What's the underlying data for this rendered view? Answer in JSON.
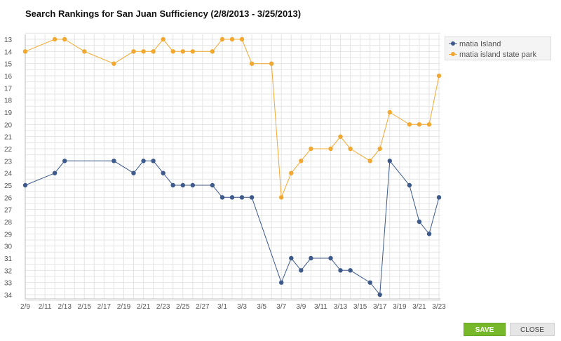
{
  "chart": {
    "title": "Search Rankings for San Juan Sufficiency (2/8/2013 - 3/25/2013)"
  },
  "legend": {
    "items": [
      {
        "label": "matia Island",
        "color": "#3d5a8a"
      },
      {
        "label": "matia island state park",
        "color": "#f0a830"
      }
    ]
  },
  "buttons": {
    "save_label": "SAVE",
    "close_label": "CLOSE"
  },
  "chart_data": {
    "type": "line",
    "title": "Search Rankings for San Juan Sufficiency (2/8/2013 - 3/25/2013)",
    "xlabel": "",
    "ylabel": "",
    "y_inverted": true,
    "ylim": [
      13,
      34
    ],
    "y_ticks": [
      13,
      14,
      15,
      16,
      17,
      18,
      19,
      20,
      21,
      22,
      23,
      24,
      25,
      26,
      27,
      28,
      29,
      30,
      31,
      32,
      33,
      34
    ],
    "xlim": [
      "2013-02-09",
      "2013-03-23"
    ],
    "x_tick_labels": [
      "2/9",
      "2/11",
      "2/13",
      "2/15",
      "2/17",
      "2/19",
      "2/21",
      "2/23",
      "2/25",
      "2/27",
      "3/1",
      "3/3",
      "3/5",
      "3/7",
      "3/9",
      "3/11",
      "3/13",
      "3/15",
      "3/17",
      "3/19",
      "3/21",
      "3/23"
    ],
    "x_tick_dates": [
      "2013-02-09",
      "2013-02-11",
      "2013-02-13",
      "2013-02-15",
      "2013-02-17",
      "2013-02-19",
      "2013-02-21",
      "2013-02-23",
      "2013-02-25",
      "2013-02-27",
      "2013-03-01",
      "2013-03-03",
      "2013-03-05",
      "2013-03-07",
      "2013-03-09",
      "2013-03-11",
      "2013-03-13",
      "2013-03-15",
      "2013-03-17",
      "2013-03-19",
      "2013-03-21",
      "2013-03-23"
    ],
    "grid": true,
    "legend_position": "top-right",
    "series": [
      {
        "name": "matia Island",
        "color": "#3d5a8a",
        "points": [
          {
            "x": "2013-02-09",
            "y": 25
          },
          {
            "x": "2013-02-12",
            "y": 24
          },
          {
            "x": "2013-02-13",
            "y": 23
          },
          {
            "x": "2013-02-18",
            "y": 23
          },
          {
            "x": "2013-02-20",
            "y": 24
          },
          {
            "x": "2013-02-21",
            "y": 23
          },
          {
            "x": "2013-02-22",
            "y": 23
          },
          {
            "x": "2013-02-23",
            "y": 24
          },
          {
            "x": "2013-02-24",
            "y": 25
          },
          {
            "x": "2013-02-25",
            "y": 25
          },
          {
            "x": "2013-02-26",
            "y": 25
          },
          {
            "x": "2013-02-28",
            "y": 25
          },
          {
            "x": "2013-03-01",
            "y": 26
          },
          {
            "x": "2013-03-02",
            "y": 26
          },
          {
            "x": "2013-03-03",
            "y": 26
          },
          {
            "x": "2013-03-04",
            "y": 26
          },
          {
            "x": "2013-03-07",
            "y": 33
          },
          {
            "x": "2013-03-08",
            "y": 31
          },
          {
            "x": "2013-03-09",
            "y": 32
          },
          {
            "x": "2013-03-10",
            "y": 31
          },
          {
            "x": "2013-03-12",
            "y": 31
          },
          {
            "x": "2013-03-13",
            "y": 32
          },
          {
            "x": "2013-03-14",
            "y": 32
          },
          {
            "x": "2013-03-16",
            "y": 33
          },
          {
            "x": "2013-03-17",
            "y": 34
          },
          {
            "x": "2013-03-18",
            "y": 23
          },
          {
            "x": "2013-03-20",
            "y": 25
          },
          {
            "x": "2013-03-21",
            "y": 28
          },
          {
            "x": "2013-03-22",
            "y": 29
          },
          {
            "x": "2013-03-23",
            "y": 26
          }
        ]
      },
      {
        "name": "matia island state park",
        "color": "#f0a830",
        "points": [
          {
            "x": "2013-02-09",
            "y": 14
          },
          {
            "x": "2013-02-12",
            "y": 13
          },
          {
            "x": "2013-02-13",
            "y": 13
          },
          {
            "x": "2013-02-15",
            "y": 14
          },
          {
            "x": "2013-02-18",
            "y": 15
          },
          {
            "x": "2013-02-20",
            "y": 14
          },
          {
            "x": "2013-02-21",
            "y": 14
          },
          {
            "x": "2013-02-22",
            "y": 14
          },
          {
            "x": "2013-02-23",
            "y": 13
          },
          {
            "x": "2013-02-24",
            "y": 14
          },
          {
            "x": "2013-02-25",
            "y": 14
          },
          {
            "x": "2013-02-26",
            "y": 14
          },
          {
            "x": "2013-02-28",
            "y": 14
          },
          {
            "x": "2013-03-01",
            "y": 13
          },
          {
            "x": "2013-03-02",
            "y": 13
          },
          {
            "x": "2013-03-03",
            "y": 13
          },
          {
            "x": "2013-03-04",
            "y": 15
          },
          {
            "x": "2013-03-06",
            "y": 15
          },
          {
            "x": "2013-03-07",
            "y": 26
          },
          {
            "x": "2013-03-08",
            "y": 24
          },
          {
            "x": "2013-03-09",
            "y": 23
          },
          {
            "x": "2013-03-10",
            "y": 22
          },
          {
            "x": "2013-03-12",
            "y": 22
          },
          {
            "x": "2013-03-13",
            "y": 21
          },
          {
            "x": "2013-03-14",
            "y": 22
          },
          {
            "x": "2013-03-16",
            "y": 23
          },
          {
            "x": "2013-03-17",
            "y": 22
          },
          {
            "x": "2013-03-18",
            "y": 19
          },
          {
            "x": "2013-03-20",
            "y": 20
          },
          {
            "x": "2013-03-21",
            "y": 20
          },
          {
            "x": "2013-03-22",
            "y": 20
          },
          {
            "x": "2013-03-23",
            "y": 16
          }
        ]
      }
    ]
  }
}
